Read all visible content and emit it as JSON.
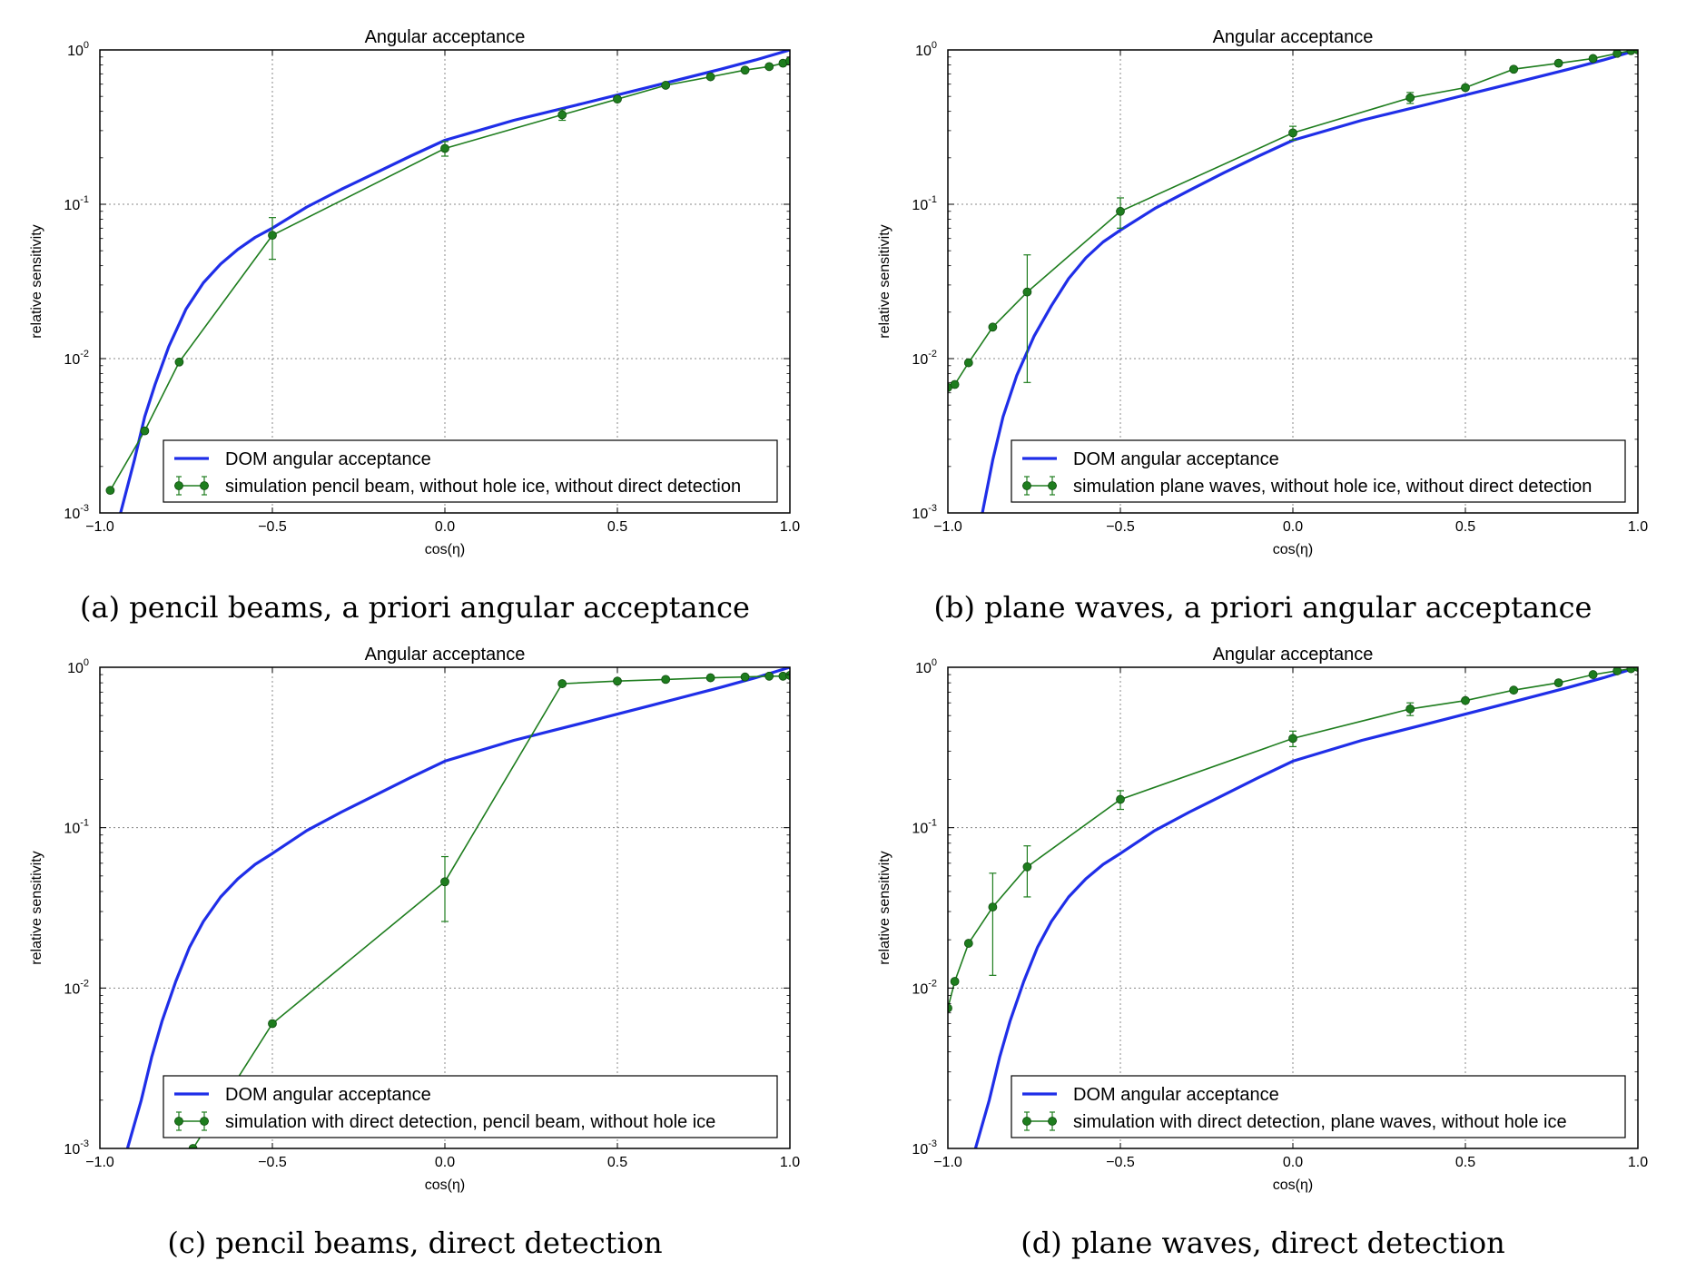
{
  "colors": {
    "curve": "#1f2ee8",
    "sim": "#1e7d1e"
  },
  "chart_data": [
    {
      "type": "line",
      "title": "Angular acceptance",
      "caption": "(a) pencil beams, a priori angular acceptance",
      "xlabel": "cos(η)",
      "ylabel": "relative sensitivity",
      "xlim": [
        -1.0,
        1.0
      ],
      "ylim": [
        0.001,
        1
      ],
      "yscale": "log",
      "grid": true,
      "legend_position": "lower-right",
      "xticks": [
        "−1.0",
        "−0.5",
        "0.0",
        "0.5",
        "1.0"
      ],
      "yticks": [
        {
          "base": "10",
          "exp": "-3"
        },
        {
          "base": "10",
          "exp": "-2"
        },
        {
          "base": "10",
          "exp": "-1"
        },
        {
          "base": "10",
          "exp": "0"
        }
      ],
      "series": [
        {
          "name": "DOM angular acceptance",
          "style": "curve",
          "x": [
            -0.94,
            -0.9,
            -0.87,
            -0.84,
            -0.8,
            -0.75,
            -0.7,
            -0.65,
            -0.6,
            -0.55,
            -0.5,
            -0.4,
            -0.3,
            -0.2,
            -0.1,
            0.0,
            0.2,
            0.4,
            0.6,
            0.8,
            0.9,
            1.0
          ],
          "y": [
            0.001,
            0.0022,
            0.0042,
            0.0068,
            0.012,
            0.021,
            0.031,
            0.041,
            0.051,
            0.061,
            0.07,
            0.096,
            0.125,
            0.16,
            0.205,
            0.26,
            0.35,
            0.45,
            0.58,
            0.75,
            0.86,
            1.0
          ]
        },
        {
          "name": "simulation pencil beam, without hole ice, without direct detection",
          "style": "sim",
          "x": [
            -0.97,
            -0.87,
            -0.77,
            -0.5,
            0.0,
            0.34,
            0.5,
            0.64,
            0.77,
            0.87,
            0.94,
            0.98,
            1.0
          ],
          "y": [
            0.0014,
            0.0034,
            0.0095,
            0.063,
            0.23,
            0.38,
            0.48,
            0.59,
            0.67,
            0.74,
            0.78,
            0.82,
            0.85
          ],
          "err": [
            0,
            0,
            0,
            0.019,
            0.025,
            0.03,
            0,
            0,
            0,
            0,
            0,
            0,
            0
          ]
        }
      ]
    },
    {
      "type": "line",
      "title": "Angular acceptance",
      "caption": "(b) plane waves, a priori angular acceptance",
      "xlabel": "cos(η)",
      "ylabel": "relative sensitivity",
      "xlim": [
        -1.0,
        1.0
      ],
      "ylim": [
        0.001,
        1
      ],
      "yscale": "log",
      "grid": true,
      "legend_position": "lower-right",
      "xticks": [
        "−1.0",
        "−0.5",
        "0.0",
        "0.5",
        "1.0"
      ],
      "yticks": [
        {
          "base": "10",
          "exp": "-3"
        },
        {
          "base": "10",
          "exp": "-2"
        },
        {
          "base": "10",
          "exp": "-1"
        },
        {
          "base": "10",
          "exp": "0"
        }
      ],
      "series": [
        {
          "name": "DOM angular acceptance",
          "style": "curve",
          "x": [
            -0.9,
            -0.87,
            -0.84,
            -0.8,
            -0.75,
            -0.7,
            -0.65,
            -0.6,
            -0.55,
            -0.5,
            -0.4,
            -0.3,
            -0.2,
            -0.1,
            0.0,
            0.2,
            0.4,
            0.6,
            0.8,
            0.9,
            1.0
          ],
          "y": [
            0.001,
            0.0022,
            0.0042,
            0.0078,
            0.014,
            0.022,
            0.033,
            0.045,
            0.057,
            0.068,
            0.094,
            0.123,
            0.16,
            0.205,
            0.26,
            0.35,
            0.45,
            0.58,
            0.75,
            0.86,
            1.0
          ]
        },
        {
          "name": "simulation plane waves, without hole ice, without direct detection",
          "style": "sim",
          "x": [
            -1.0,
            -0.98,
            -0.94,
            -0.87,
            -0.77,
            -0.5,
            0.0,
            0.34,
            0.5,
            0.64,
            0.77,
            0.87,
            0.94,
            0.98,
            1.0
          ],
          "y": [
            0.0065,
            0.0068,
            0.0094,
            0.016,
            0.027,
            0.09,
            0.29,
            0.49,
            0.57,
            0.75,
            0.82,
            0.88,
            0.95,
            0.99,
            1.0
          ],
          "err": [
            0,
            0,
            0,
            0,
            0.02,
            0.02,
            0.03,
            0.04,
            0,
            0,
            0,
            0,
            0,
            0,
            0
          ]
        }
      ]
    },
    {
      "type": "line",
      "title": "Angular acceptance",
      "caption": "(c) pencil beams, direct detection",
      "xlabel": "cos(η)",
      "ylabel": "relative sensitivity",
      "xlim": [
        -1.0,
        1.0
      ],
      "ylim": [
        0.001,
        1
      ],
      "yscale": "log",
      "grid": true,
      "legend_position": "lower-right",
      "xticks": [
        "−1.0",
        "−0.5",
        "0.0",
        "0.5",
        "1.0"
      ],
      "yticks": [
        {
          "base": "10",
          "exp": "-3"
        },
        {
          "base": "10",
          "exp": "-2"
        },
        {
          "base": "10",
          "exp": "-1"
        },
        {
          "base": "10",
          "exp": "0"
        }
      ],
      "series": [
        {
          "name": "DOM angular acceptance",
          "style": "curve",
          "x": [
            -0.92,
            -0.88,
            -0.85,
            -0.82,
            -0.78,
            -0.74,
            -0.7,
            -0.65,
            -0.6,
            -0.55,
            -0.5,
            -0.4,
            -0.3,
            -0.2,
            -0.1,
            0.0,
            0.2,
            0.4,
            0.6,
            0.8,
            0.9,
            1.0
          ],
          "y": [
            0.001,
            0.002,
            0.0037,
            0.0062,
            0.011,
            0.018,
            0.026,
            0.037,
            0.048,
            0.059,
            0.069,
            0.096,
            0.125,
            0.16,
            0.205,
            0.26,
            0.35,
            0.45,
            0.58,
            0.75,
            0.86,
            1.0
          ]
        },
        {
          "name": "simulation with direct detection, pencil beam, without hole ice",
          "style": "sim",
          "x": [
            -0.73,
            -0.5,
            0.0,
            0.34,
            0.5,
            0.64,
            0.77,
            0.87,
            0.94,
            0.98,
            1.0
          ],
          "y": [
            0.001,
            0.006,
            0.046,
            0.79,
            0.82,
            0.84,
            0.86,
            0.87,
            0.88,
            0.88,
            0.89
          ],
          "err": [
            0,
            0,
            0.02,
            0,
            0,
            0,
            0,
            0,
            0,
            0,
            0
          ]
        }
      ]
    },
    {
      "type": "line",
      "title": "Angular acceptance",
      "caption": "(d) plane waves, direct detection",
      "xlabel": "cos(η)",
      "ylabel": "relative sensitivity",
      "xlim": [
        -1.0,
        1.0
      ],
      "ylim": [
        0.001,
        1
      ],
      "yscale": "log",
      "grid": true,
      "legend_position": "lower-right",
      "xticks": [
        "−1.0",
        "−0.5",
        "0.0",
        "0.5",
        "1.0"
      ],
      "yticks": [
        {
          "base": "10",
          "exp": "-3"
        },
        {
          "base": "10",
          "exp": "-2"
        },
        {
          "base": "10",
          "exp": "-1"
        },
        {
          "base": "10",
          "exp": "0"
        }
      ],
      "series": [
        {
          "name": "DOM angular acceptance",
          "style": "curve",
          "x": [
            -0.92,
            -0.88,
            -0.85,
            -0.82,
            -0.78,
            -0.74,
            -0.7,
            -0.65,
            -0.6,
            -0.55,
            -0.5,
            -0.4,
            -0.3,
            -0.2,
            -0.1,
            0.0,
            0.2,
            0.4,
            0.6,
            0.8,
            0.9,
            1.0
          ],
          "y": [
            0.001,
            0.002,
            0.0037,
            0.0062,
            0.011,
            0.018,
            0.026,
            0.037,
            0.048,
            0.059,
            0.069,
            0.096,
            0.125,
            0.16,
            0.205,
            0.26,
            0.35,
            0.45,
            0.58,
            0.75,
            0.86,
            1.0
          ]
        },
        {
          "name": "simulation with direct detection, plane waves, without hole ice",
          "style": "sim",
          "x": [
            -1.0,
            -0.98,
            -0.94,
            -0.87,
            -0.77,
            -0.5,
            0.0,
            0.34,
            0.5,
            0.64,
            0.77,
            0.87,
            0.94,
            0.98,
            1.0
          ],
          "y": [
            0.0075,
            0.011,
            0.019,
            0.032,
            0.057,
            0.15,
            0.36,
            0.55,
            0.62,
            0.72,
            0.8,
            0.9,
            0.95,
            0.98,
            1.0
          ],
          "err": [
            0,
            0,
            0,
            0.02,
            0.02,
            0.02,
            0.04,
            0.05,
            0,
            0,
            0,
            0,
            0,
            0,
            0
          ]
        }
      ]
    }
  ]
}
